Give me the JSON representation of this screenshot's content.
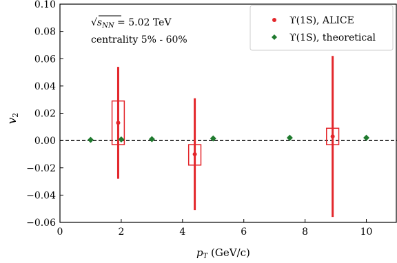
{
  "chart_data": {
    "type": "scatter",
    "xlabel": "p_T (GeV/c)",
    "ylabel": "v_2",
    "xlim": [
      0,
      11
    ],
    "ylim": [
      -0.06,
      0.1
    ],
    "xticks": [
      0,
      2,
      4,
      6,
      8,
      10
    ],
    "yticks": [
      -0.06,
      -0.04,
      -0.02,
      0.0,
      0.02,
      0.04,
      0.06,
      0.08,
      0.1
    ],
    "xtick_labels": [
      "0",
      "2",
      "4",
      "6",
      "8",
      "10"
    ],
    "ytick_labels": [
      "−0.06",
      "−0.04",
      "−0.02",
      "0.00",
      "0.02",
      "0.04",
      "0.06",
      "0.08",
      "0.10"
    ],
    "reference_line": {
      "y": 0,
      "style": "dashed",
      "color": "#000000"
    },
    "annotations": [
      "√s_NN = 5.02 TeV",
      "centrality 5% - 60%"
    ],
    "legend_position": "top-right",
    "series": [
      {
        "name": "ϒ(1S), ALICE",
        "marker": "circle",
        "color": "#e3262b",
        "points": [
          {
            "x": 1.9,
            "y": 0.013,
            "stat_err": 0.041,
            "syst_x_half": 0.2,
            "syst_low": -0.003,
            "syst_high": 0.029
          },
          {
            "x": 4.4,
            "y": -0.01,
            "stat_err": 0.041,
            "syst_x_half": 0.2,
            "syst_low": -0.018,
            "syst_high": -0.003
          },
          {
            "x": 8.9,
            "y": 0.003,
            "stat_err": 0.059,
            "syst_x_half": 0.2,
            "syst_low": -0.003,
            "syst_high": 0.009
          }
        ]
      },
      {
        "name": "ϒ(1S), theoretical",
        "marker": "diamond",
        "color": "#1f7a2e",
        "points": [
          {
            "x": 1.0,
            "y": 0.0005
          },
          {
            "x": 2.0,
            "y": 0.0008
          },
          {
            "x": 3.0,
            "y": 0.001
          },
          {
            "x": 5.0,
            "y": 0.0015
          },
          {
            "x": 7.5,
            "y": 0.002
          },
          {
            "x": 10.0,
            "y": 0.002
          }
        ]
      }
    ]
  },
  "annotation": {
    "energy_prefix": "√",
    "energy_sub": "s",
    "energy_subsub": "NN",
    "energy_rest": " = 5.02 TeV",
    "centrality": "centrality 5% - 60%"
  },
  "legend": {
    "alice_label": "ϒ(1S), ALICE",
    "theory_label": "ϒ(1S), theoretical"
  },
  "axes": {
    "xlabel_main": "p",
    "xlabel_sub": "T",
    "xlabel_unit": " (GeV/c)",
    "ylabel_main": "v",
    "ylabel_sub": "2"
  }
}
